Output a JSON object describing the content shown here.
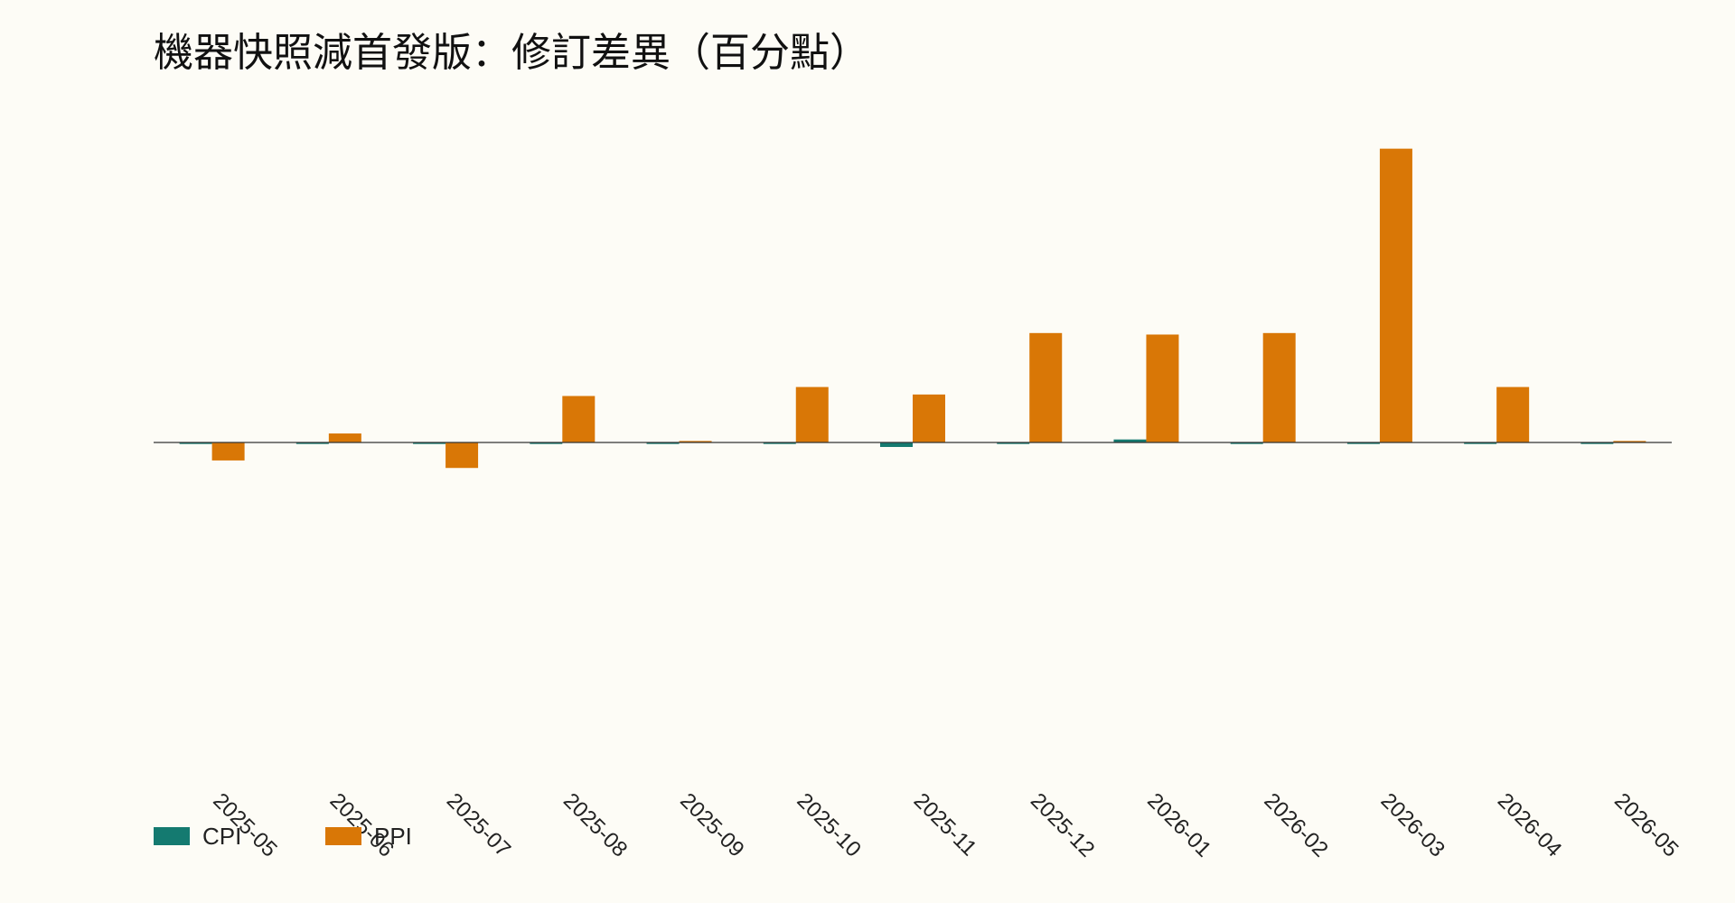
{
  "title": "機器快照減首發版：修訂差異（百分點）",
  "colors": {
    "background": "#fdfcf6",
    "cpi": "#147a70",
    "ppi": "#d97706",
    "zero_line": "#333333"
  },
  "chart_data": {
    "type": "bar",
    "title": "機器快照減首發版：修訂差異（百分點）",
    "xlabel": "",
    "ylabel": "",
    "categories": [
      "2025-05",
      "2025-06",
      "2025-07",
      "2025-08",
      "2025-09",
      "2025-10",
      "2025-11",
      "2025-12",
      "2026-01",
      "2026-02",
      "2026-03",
      "2026-04",
      "2026-05"
    ],
    "series": [
      {
        "name": "CPI",
        "color": "#147a70",
        "values": [
          -0.01,
          -0.01,
          -0.01,
          -0.01,
          -0.01,
          -0.01,
          -0.03,
          -0.01,
          0.02,
          -0.01,
          -0.01,
          -0.01,
          -0.01
        ]
      },
      {
        "name": "PPI",
        "color": "#d97706",
        "values": [
          -0.12,
          0.06,
          -0.17,
          0.31,
          0.01,
          0.37,
          0.32,
          0.73,
          0.72,
          0.73,
          1.96,
          0.37,
          0.01
        ]
      }
    ],
    "ylim": [
      -2.35,
      2.25
    ],
    "y_ticks_visible": false,
    "grid": false,
    "legend": {
      "placement": "bottom-left",
      "items": [
        "CPI",
        "PPI"
      ]
    },
    "x_tick_rotation_deg": 45
  }
}
